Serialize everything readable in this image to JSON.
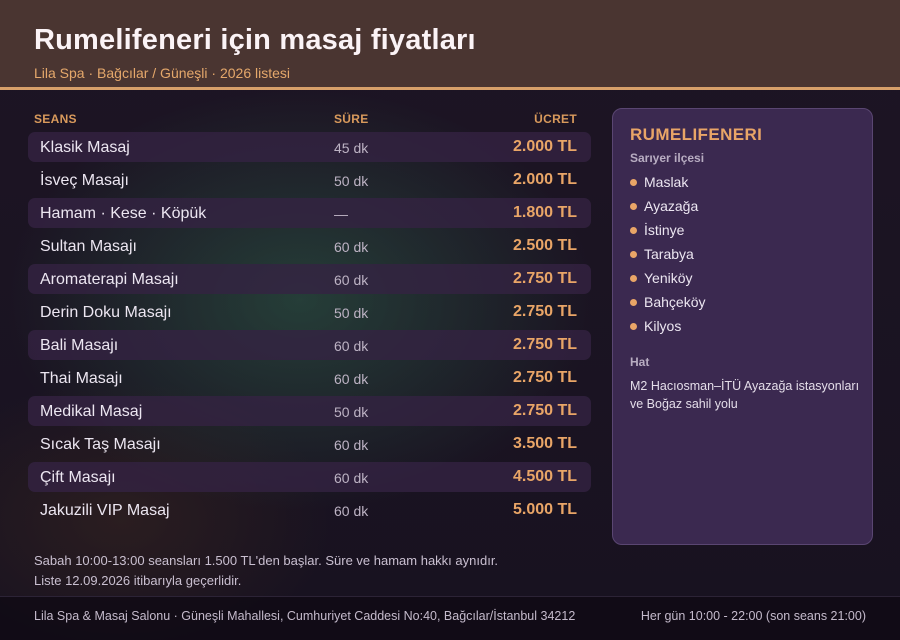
{
  "header": {
    "title": "Rumelifeneri için masaj fiyatları",
    "subtitle": "Lila Spa · Bağcılar / Güneşli · 2026 listesi"
  },
  "table": {
    "columns": {
      "name": "SEANS",
      "duration": "SÜRE",
      "price": "ÜCRET"
    },
    "rows": [
      {
        "name": "Klasik Masaj",
        "duration": "45 dk",
        "price": "2.000 TL"
      },
      {
        "name": "İsveç Masajı",
        "duration": "50 dk",
        "price": "2.000 TL"
      },
      {
        "name": "Hamam · Kese · Köpük",
        "duration": "—",
        "price": "1.800 TL"
      },
      {
        "name": "Sultan Masajı",
        "duration": "60 dk",
        "price": "2.500 TL"
      },
      {
        "name": "Aromaterapi Masajı",
        "duration": "60 dk",
        "price": "2.750 TL"
      },
      {
        "name": "Derin Doku Masajı",
        "duration": "50 dk",
        "price": "2.750 TL"
      },
      {
        "name": "Bali Masajı",
        "duration": "60 dk",
        "price": "2.750 TL"
      },
      {
        "name": "Thai Masajı",
        "duration": "60 dk",
        "price": "2.750 TL"
      },
      {
        "name": "Medikal Masaj",
        "duration": "50 dk",
        "price": "2.750 TL"
      },
      {
        "name": "Sıcak Taş Masajı",
        "duration": "60 dk",
        "price": "3.500 TL"
      },
      {
        "name": "Çift Masajı",
        "duration": "60 dk",
        "price": "4.500 TL"
      },
      {
        "name": "Jakuzili VIP Masaj",
        "duration": "60 dk",
        "price": "5.000 TL"
      }
    ]
  },
  "note": {
    "line1": "Sabah 10:00-13:00 seansları 1.500 TL'den başlar. Süre ve hamam hakkı aynıdır.",
    "line2": "Liste 12.09.2026 itibarıyla geçerlidir."
  },
  "card": {
    "title": "RUMELIFENERI",
    "district": "Sarıyer ilçesi",
    "neighborhoods": [
      "Maslak",
      "Ayazağa",
      "İstinye",
      "Tarabya",
      "Yeniköy",
      "Bahçeköy",
      "Kilyos"
    ],
    "transit_label": "Hat",
    "transit": "M2 Hacıosman–İTÜ Ayazağa istasyonları ve Boğaz sahil yolu"
  },
  "footer": {
    "address": "Lila Spa & Masaj Salonu · Güneşli Mahallesi, Cumhuriyet Caddesi No:40, Bağcılar/İstanbul 34212",
    "hours": "Her gün 10:00 - 22:00 (son seans 21:00)"
  },
  "colors": {
    "accent": "#e9a567",
    "header_bg": "#4a3531",
    "card_bg": "#3b2950"
  }
}
